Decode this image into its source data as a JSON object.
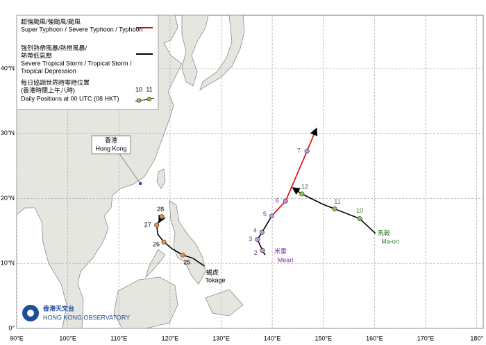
{
  "chart_data": {
    "type": "track-map",
    "xlim": [
      90,
      181
    ],
    "ylim": [
      0,
      48
    ],
    "xticks": [
      {
        "value": 90,
        "label": "90°E"
      },
      {
        "value": 100,
        "label": "100°E"
      },
      {
        "value": 110,
        "label": "110°E"
      },
      {
        "value": 120,
        "label": "120°E"
      },
      {
        "value": 130,
        "label": "130°E"
      },
      {
        "value": 140,
        "label": "140°E"
      },
      {
        "value": 150,
        "label": "150°E"
      },
      {
        "value": 160,
        "label": "160°E"
      },
      {
        "value": 170,
        "label": "170°E"
      },
      {
        "value": 180,
        "label": "180°"
      }
    ],
    "yticks": [
      {
        "value": 0,
        "label": "0°"
      },
      {
        "value": 10,
        "label": "10°N"
      },
      {
        "value": 20,
        "label": "20°N"
      },
      {
        "value": 30,
        "label": "30°N"
      },
      {
        "value": 40,
        "label": "40°N"
      }
    ],
    "grid": true,
    "legend": {
      "typhoon": {
        "color": "#e00000",
        "lines": [
          "超強颱風/強颱風/颱風",
          "Super Typhoon / Severe Typhoon / Typhoon"
        ]
      },
      "storm": {
        "color": "#000000",
        "lines": [
          "強烈熱帶風暴/熱帶風暴/",
          "熱帶低氣壓",
          "Severe Tropical Storm / Tropical Storm /",
          "Tropical Depression"
        ]
      },
      "positions": {
        "lines": [
          "每日協調世界時零時位置",
          "(香港時間上午八時)",
          "Daily Positions at 00 UTC (08 HKT)"
        ],
        "sample_labels": [
          "10",
          "11"
        ]
      }
    },
    "hong_kong": {
      "name_zh": "香港",
      "name_en": "Hong Kong",
      "lon": 114.2,
      "lat": 22.3
    },
    "tracks": [
      {
        "name_zh": "馬鞍",
        "name_en": "Ma-on",
        "label_color": "#2e7d32",
        "dot_color": "#8bc34a",
        "segments": [
          {
            "color": "#000000",
            "lon": [
              160.2,
              157.1,
              152.2,
              149.9,
              145.8,
              144.1
            ],
            "lat": [
              14.6,
              16.9,
              18.4,
              19.1,
              20.7,
              21.6
            ]
          }
        ],
        "positions": [
          {
            "label": "10",
            "lon": 157.1,
            "lat": 16.9
          },
          {
            "label": "11",
            "lon": 152.2,
            "lat": 18.4
          },
          {
            "label": "12",
            "lon": 145.8,
            "lat": 20.7
          }
        ]
      },
      {
        "name_zh": "米雷",
        "name_en": "Meari",
        "label_color": "#7b2f9e",
        "dot_color": "#b39ddb",
        "segments": [
          {
            "color": "#000000",
            "lon": [
              138.6,
              138.1,
              137.1,
              138.0,
              139.9
            ],
            "lat": [
              11.3,
              12.0,
              13.7,
              14.8,
              17.3
            ]
          },
          {
            "color": "#e00000",
            "lon": [
              139.9,
              142.6,
              146.8,
              148.6
            ],
            "lat": [
              17.3,
              19.6,
              27.3,
              30.7
            ]
          }
        ],
        "positions": [
          {
            "label": "2",
            "lon": 138.1,
            "lat": 12.0
          },
          {
            "label": "3",
            "lon": 137.1,
            "lat": 13.7
          },
          {
            "label": "4",
            "lon": 138.0,
            "lat": 14.8
          },
          {
            "label": "5",
            "lon": 139.9,
            "lat": 17.3
          },
          {
            "label": "6",
            "lon": 142.6,
            "lat": 19.6
          },
          {
            "label": "7",
            "lon": 146.8,
            "lat": 27.3
          }
        ]
      },
      {
        "name_zh": "蝎虎",
        "name_en": "Tokage",
        "label_color": "#000000",
        "dot_color": "#ef8a3c",
        "segments": [
          {
            "color": "#000000",
            "lon": [
              126.7,
              124.5,
              122.5,
              120.5,
              118.8,
              117.6,
              117.4,
              118.4,
              117.9
            ],
            "lat": [
              9.6,
              10.8,
              11.3,
              12.2,
              13.3,
              14.5,
              15.9,
              17.2,
              16.4
            ]
          }
        ],
        "positions": [
          {
            "label": "25",
            "lon": 122.5,
            "lat": 11.3
          },
          {
            "label": "26",
            "lon": 118.8,
            "lat": 13.3
          },
          {
            "label": "27",
            "lon": 117.4,
            "lat": 15.9
          },
          {
            "label": "28",
            "lon": 118.4,
            "lat": 17.2
          }
        ]
      }
    ],
    "logo": {
      "name_zh": "香港天文台",
      "name_en": "HONG KONG OBSERVATORY"
    }
  }
}
